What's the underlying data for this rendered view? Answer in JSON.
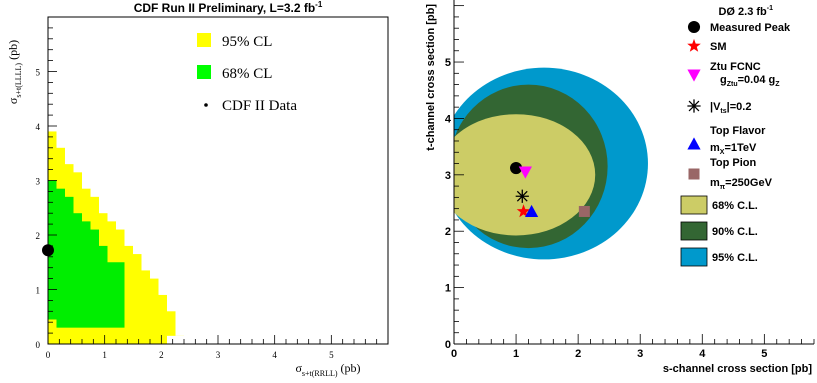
{
  "chart_data": [
    {
      "type": "heatmap",
      "title": "CDF Run II Preliminary, L=3.2 fb",
      "title_sup": "-1",
      "xlabel": "σ",
      "xlabel_sub": "s+t(RRLL)",
      "xlabel_unit": "(pb)",
      "ylabel": "σ",
      "ylabel_sub": "s+t(LLLL)",
      "ylabel_unit": "(pb)",
      "xlim": [
        0,
        6
      ],
      "ylim": [
        0,
        6
      ],
      "x_ticks": [
        "0",
        "1",
        "2",
        "3",
        "4",
        "5"
      ],
      "y_ticks": [
        "0",
        "1",
        "2",
        "3",
        "4",
        "5"
      ],
      "cell_size": 0.15,
      "legend": [
        {
          "label": "95% CL",
          "color": "#ffff00",
          "kind": "box"
        },
        {
          "label": "68% CL",
          "color": "#00ff00",
          "kind": "box"
        },
        {
          "label": "CDF II Data",
          "color": "#000000",
          "kind": "dot"
        }
      ],
      "cl95_columns": [
        {
          "x0": 0.0,
          "x1": 0.15,
          "ymax": 3.9
        },
        {
          "x0": 0.15,
          "x1": 0.3,
          "ymax": 3.6
        },
        {
          "x0": 0.3,
          "x1": 0.45,
          "ymax": 3.3
        },
        {
          "x0": 0.45,
          "x1": 0.6,
          "ymax": 3.15
        },
        {
          "x0": 0.6,
          "x1": 0.75,
          "ymax": 2.85
        },
        {
          "x0": 0.75,
          "x1": 0.9,
          "ymax": 2.7
        },
        {
          "x0": 0.9,
          "x1": 1.05,
          "ymax": 2.4
        },
        {
          "x0": 1.05,
          "x1": 1.2,
          "ymax": 2.25
        },
        {
          "x0": 1.2,
          "x1": 1.35,
          "ymax": 2.1
        },
        {
          "x0": 1.35,
          "x1": 1.5,
          "ymax": 1.8
        },
        {
          "x0": 1.5,
          "x1": 1.65,
          "ymax": 1.65
        },
        {
          "x0": 1.65,
          "x1": 1.8,
          "ymax": 1.35
        },
        {
          "x0": 1.8,
          "x1": 1.95,
          "ymax": 1.2
        },
        {
          "x0": 1.95,
          "x1": 2.1,
          "ymax": 0.9
        },
        {
          "x0": 2.1,
          "x1": 2.25,
          "ymax": 0.6
        },
        {
          "x0": 2.25,
          "x1": 2.4,
          "ymax": 0.15
        }
      ],
      "cl95_white": [
        {
          "x0": 2.1,
          "x1": 2.25,
          "ymax": 0.15
        },
        {
          "x0": 2.25,
          "x1": 2.4,
          "ymax": 0.15
        }
      ],
      "cl68_columns": [
        {
          "x0": 0.0,
          "x1": 0.15,
          "ymin": 0.45,
          "ymax": 3.0
        },
        {
          "x0": 0.15,
          "x1": 0.3,
          "ymin": 0.3,
          "ymax": 2.85
        },
        {
          "x0": 0.3,
          "x1": 0.45,
          "ymin": 0.3,
          "ymax": 2.7
        },
        {
          "x0": 0.45,
          "x1": 0.6,
          "ymin": 0.3,
          "ymax": 2.4
        },
        {
          "x0": 0.6,
          "x1": 0.75,
          "ymin": 0.3,
          "ymax": 2.25
        },
        {
          "x0": 0.75,
          "x1": 0.9,
          "ymin": 0.3,
          "ymax": 2.1
        },
        {
          "x0": 0.9,
          "x1": 1.05,
          "ymin": 0.3,
          "ymax": 1.8
        },
        {
          "x0": 1.05,
          "x1": 1.2,
          "ymin": 0.3,
          "ymax": 1.5
        },
        {
          "x0": 1.2,
          "x1": 1.35,
          "ymin": 0.3,
          "ymax": 1.5
        }
      ],
      "data_point": {
        "x": 0.0,
        "y": 1.72
      }
    },
    {
      "type": "scatter",
      "xlabel": "s-channel cross section [pb]",
      "ylabel": "t-channel cross section [pb]",
      "xlim": [
        0,
        5.8
      ],
      "ylim": [
        0,
        6.1
      ],
      "x_ticks": [
        "0",
        "1",
        "2",
        "3",
        "4",
        "5"
      ],
      "y_ticks": [
        "0",
        "1",
        "2",
        "3",
        "4",
        "5"
      ],
      "experiment_label": "DØ 2.3 fb",
      "experiment_label_sup": "-1",
      "regions": [
        {
          "label": "95% C.L.",
          "color": "#0099cc",
          "cx": 1.45,
          "cy": 3.2,
          "rx": 3.35,
          "ry": 3.4
        },
        {
          "label": "90% C.L.",
          "color": "#336633",
          "cx": 1.2,
          "cy": 3.15,
          "rx": 2.55,
          "ry": 2.9
        },
        {
          "label": "68% C.L.",
          "color": "#cccc66",
          "cx": 1.0,
          "cy": 3.0,
          "rx": 2.55,
          "ry": 2.15
        }
      ],
      "points": [
        {
          "label": "Measured Peak",
          "x": 1.0,
          "y": 3.12,
          "marker": "circle",
          "color": "#000000"
        },
        {
          "label": "SM",
          "x": 1.12,
          "y": 2.35,
          "marker": "star",
          "color": "#ff0000"
        },
        {
          "label": "Ztu FCNC",
          "x": 1.15,
          "y": 3.05,
          "marker": "triangle-down",
          "color": "#ff00ff"
        },
        {
          "label": "|Vts|=0.2",
          "x": 1.1,
          "y": 2.62,
          "marker": "asterisk",
          "color": "#000000"
        },
        {
          "label": "Top Flavor",
          "x": 1.25,
          "y": 2.35,
          "marker": "triangle",
          "color": "#0000ff"
        },
        {
          "label": "Top Pion",
          "x": 2.1,
          "y": 2.35,
          "marker": "square",
          "color": "#996666"
        }
      ],
      "legend": [
        {
          "marker": "circle",
          "color": "#000000",
          "lines": [
            "Measured Peak"
          ]
        },
        {
          "marker": "star",
          "color": "#ff0000",
          "lines": [
            "SM"
          ]
        },
        {
          "marker": "triangle-down",
          "color": "#ff00ff",
          "lines": [
            "Ztu FCNC",
            "g",
            "Ztu",
            "=0.04 g",
            "Z"
          ]
        },
        {
          "marker": "asterisk",
          "color": "#000000",
          "lines": [
            "|V",
            "ts",
            "|=0.2"
          ]
        },
        {
          "marker": "triangle",
          "color": "#0000ff",
          "lines": [
            "Top Flavor",
            "m",
            "X",
            "=1TeV"
          ]
        },
        {
          "marker": "square",
          "color": "#996666",
          "lines": [
            "Top Pion",
            "m",
            "π",
            "=250GeV"
          ]
        },
        {
          "marker": "box",
          "color": "#cccc66",
          "lines": [
            "68% C.L."
          ]
        },
        {
          "marker": "box",
          "color": "#336633",
          "lines": [
            "90% C.L."
          ]
        },
        {
          "marker": "box",
          "color": "#0099cc",
          "lines": [
            "95% C.L."
          ]
        }
      ]
    }
  ]
}
